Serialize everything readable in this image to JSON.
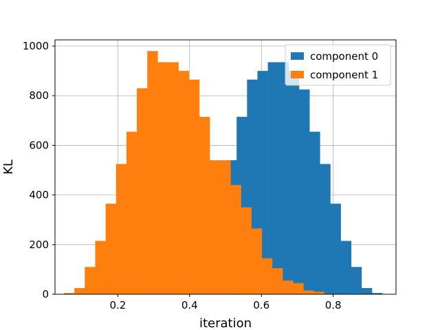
{
  "chart_data": {
    "type": "bar",
    "xlabel": "iteration",
    "ylabel": "KL",
    "xlim": [
      0.025,
      0.975
    ],
    "ylim": [
      0,
      1025
    ],
    "x_ticks": [
      "0.2",
      "0.4",
      "0.6",
      "0.8"
    ],
    "y_ticks": [
      "0",
      "200",
      "400",
      "600",
      "800",
      "1000"
    ],
    "grid": true,
    "legend_position": "top-right",
    "bin_width": 0.029,
    "series": [
      {
        "name": "component 0",
        "color": "#1f77b4",
        "bin_starts": [
          0.502,
          0.531,
          0.56,
          0.589,
          0.618,
          0.647,
          0.676,
          0.705,
          0.734,
          0.763,
          0.792,
          0.821,
          0.85,
          0.879,
          0.908
        ],
        "values": [
          540,
          715,
          865,
          900,
          935,
          935,
          900,
          825,
          655,
          525,
          365,
          215,
          110,
          25,
          5
        ]
      },
      {
        "name": "component 1",
        "color": "#ff7f0e",
        "bin_starts": [
          0.05,
          0.079,
          0.108,
          0.137,
          0.166,
          0.195,
          0.224,
          0.253,
          0.282,
          0.311,
          0.34,
          0.369,
          0.398,
          0.427,
          0.456,
          0.485,
          0.514,
          0.543,
          0.572,
          0.601,
          0.63,
          0.659,
          0.688,
          0.717,
          0.746
        ],
        "values": [
          5,
          25,
          110,
          215,
          365,
          525,
          655,
          830,
          980,
          935,
          935,
          900,
          865,
          715,
          540,
          540,
          440,
          350,
          265,
          145,
          105,
          55,
          45,
          15,
          10
        ]
      }
    ]
  }
}
